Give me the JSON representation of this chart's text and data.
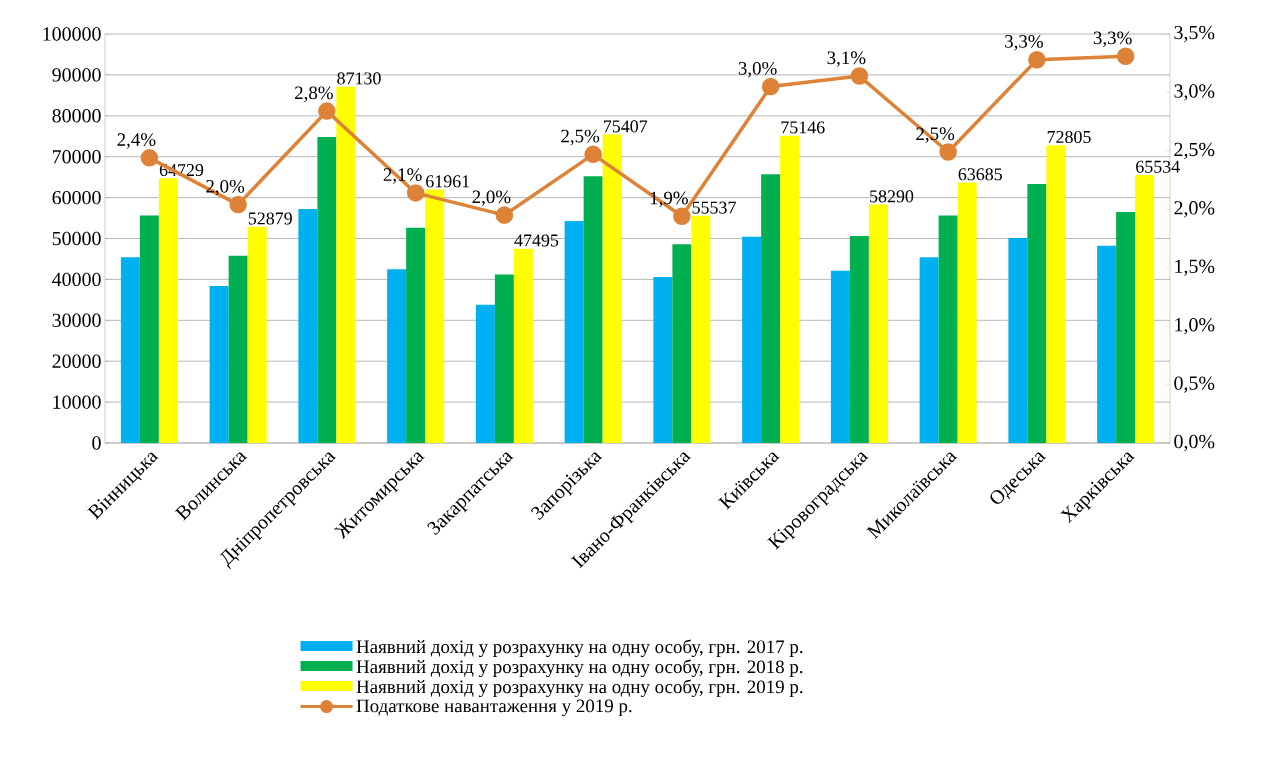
{
  "chart_data": {
    "type": "bar",
    "categories": [
      "Вінницька",
      "Волинська",
      "Дніпропетровська",
      "Житомирська",
      "Закарпатська",
      "Запорізька",
      "Івано-Франківська",
      "Київська",
      "Кіровоградська",
      "Миколаївська",
      "Одеська",
      "Харківська"
    ],
    "series": [
      {
        "name": "Наявний дохід у розрахунку на одну особу, грн. 2017 р.",
        "color": "#00b0f0",
        "values": [
          45400,
          38400,
          57200,
          42500,
          33800,
          54300,
          40600,
          50400,
          42100,
          45400,
          50100,
          48200
        ]
      },
      {
        "name": "Наявний дохід у розрахунку на одну особу, грн. 2018 р.",
        "color": "#00b050",
        "values": [
          55600,
          45800,
          74800,
          52600,
          41200,
          65200,
          48600,
          65700,
          50600,
          55600,
          63300,
          56500
        ]
      },
      {
        "name": "Наявний дохід у розрахунку на одну особу, грн. 2019 р.",
        "color": "#ffff00",
        "values": [
          64729,
          52879,
          87130,
          61961,
          47495,
          75407,
          55537,
          75146,
          58290,
          63685,
          72805,
          65534
        ],
        "value_labels": [
          "64729",
          "52879",
          "87130",
          "61961",
          "47495",
          "75407",
          "55537",
          "75146",
          "58290",
          "63685",
          "72805",
          "65534"
        ]
      },
      {
        "name": "Податкове навантаження  у 2019 р.",
        "type": "line",
        "axis": "y2",
        "color": "#dd8236",
        "marker": "circle",
        "values": [
          2.44,
          2.04,
          2.84,
          2.14,
          1.95,
          2.47,
          1.94,
          3.05,
          3.14,
          2.49,
          3.28,
          3.31
        ],
        "value_labels": [
          "2,4%",
          "2,0%",
          "2,8%",
          "2,1%",
          "2,0%",
          "2,5%",
          "1,9%",
          "3,0%",
          "3,1%",
          "2,5%",
          "3,3%",
          "3,3%"
        ]
      }
    ],
    "ylim": [
      0,
      100000
    ],
    "yticks": [
      0,
      10000,
      20000,
      30000,
      40000,
      50000,
      60000,
      70000,
      80000,
      90000,
      100000
    ],
    "y2lim": [
      0,
      3.5
    ],
    "y2ticks": [
      {
        "value": 0,
        "label": "0,0%"
      },
      {
        "value": 0.5,
        "label": "0,5%"
      },
      {
        "value": 1,
        "label": "1,0%"
      },
      {
        "value": 1.5,
        "label": "1,5%"
      },
      {
        "value": 2,
        "label": "2,0%"
      },
      {
        "value": 2.5,
        "label": "2,5%"
      },
      {
        "value": 3,
        "label": "3,0%"
      },
      {
        "value": 3.5,
        "label": "3,5%"
      }
    ],
    "grid": "y",
    "legend": "bottom"
  }
}
